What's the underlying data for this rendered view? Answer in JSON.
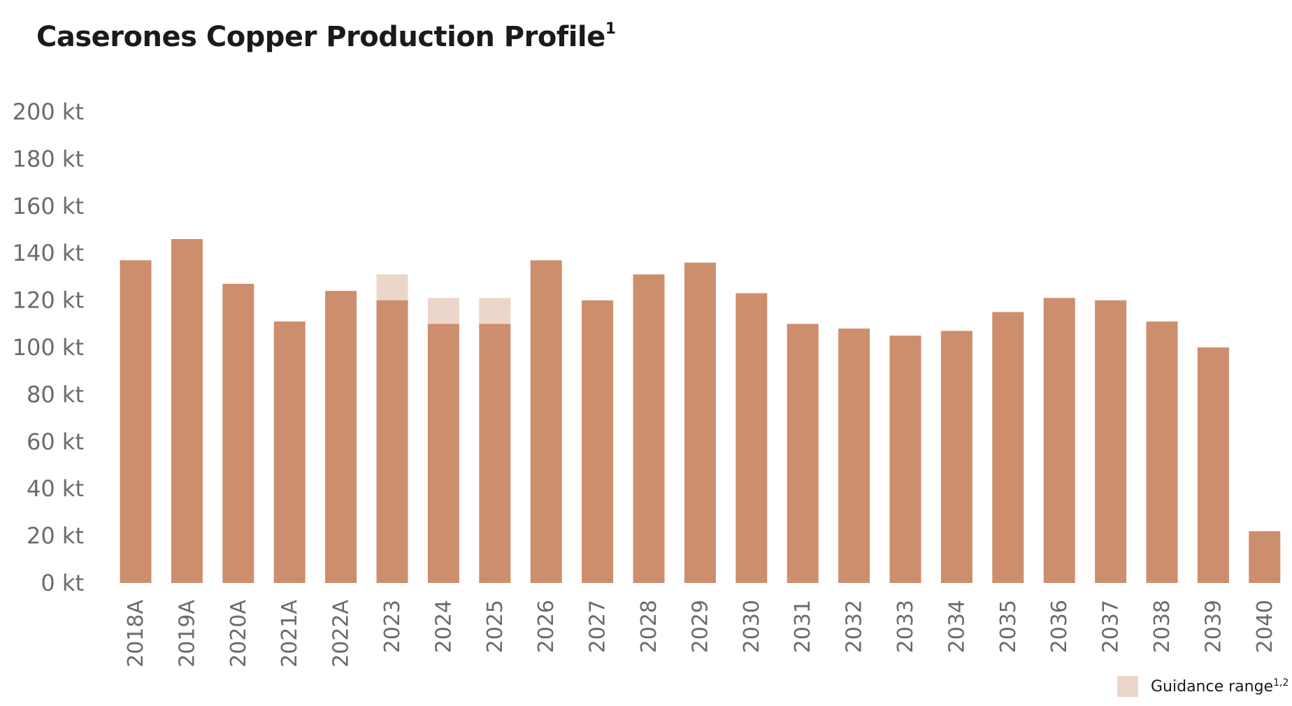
{
  "title": {
    "text": "Caserones Copper Production Profile",
    "superscript": "1"
  },
  "legend": {
    "label": "Guidance range",
    "superscript": "1,2"
  },
  "colors": {
    "bar": "#cd8e6e",
    "guidance": "#ecd6ca",
    "tick_text": "#6b6b6b",
    "title_text": "#1a1a1a"
  },
  "chart_data": {
    "type": "bar",
    "title": "Caserones Copper Production Profile",
    "xlabel": "",
    "ylabel": "",
    "unit": "kt",
    "ylim": [
      0,
      200
    ],
    "yticks": [
      0,
      20,
      40,
      60,
      80,
      100,
      120,
      140,
      160,
      180,
      200
    ],
    "ytick_labels": [
      "0 kt",
      "20 kt",
      "40 kt",
      "60 kt",
      "80 kt",
      "100 kt",
      "120 kt",
      "140 kt",
      "160 kt",
      "180 kt",
      "200 kt"
    ],
    "grid": false,
    "legend_position": "bottom-right",
    "categories": [
      "2018A",
      "2019A",
      "2020A",
      "2021A",
      "2022A",
      "2023",
      "2024",
      "2025",
      "2026",
      "2027",
      "2028",
      "2029",
      "2030",
      "2031",
      "2032",
      "2033",
      "2034",
      "2035",
      "2036",
      "2037",
      "2038",
      "2039",
      "2040"
    ],
    "series": [
      {
        "values": [
          137,
          146,
          127,
          111,
          124,
          120,
          110,
          110,
          137,
          120,
          131,
          136,
          123,
          110,
          108,
          105,
          107,
          115,
          121,
          120,
          111,
          100,
          22
        ]
      },
      {
        "name": "Guidance range",
        "type": "range",
        "ranges": [
          null,
          null,
          null,
          null,
          null,
          [
            120,
            131
          ],
          [
            110,
            121
          ],
          [
            110,
            121
          ],
          null,
          null,
          null,
          null,
          null,
          null,
          null,
          null,
          null,
          null,
          null,
          null,
          null,
          null,
          null
        ]
      }
    ]
  }
}
